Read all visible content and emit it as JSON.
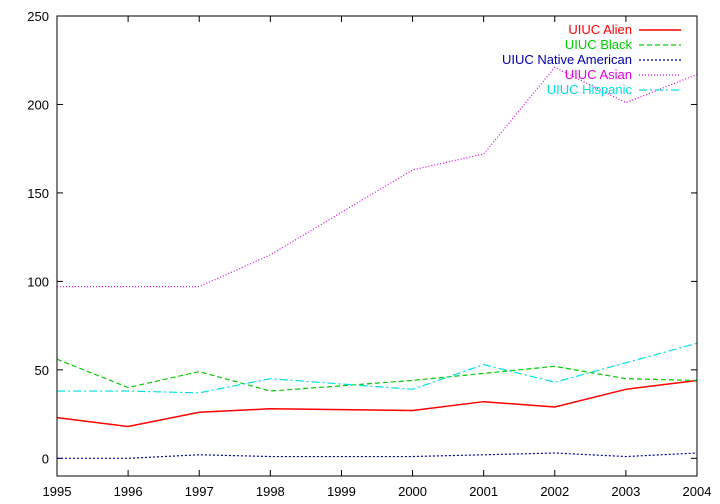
{
  "chart_data": {
    "type": "line",
    "title": "",
    "xlabel": "",
    "ylabel": "",
    "x": [
      1995,
      1996,
      1997,
      1998,
      1999,
      2000,
      2001,
      2002,
      2003,
      2004
    ],
    "x_tick_labels": [
      "1995",
      "1996",
      "1997",
      "1998",
      "1999",
      "2000",
      "2001",
      "2002",
      "2003",
      "2004"
    ],
    "xlim": [
      1995,
      2004
    ],
    "ylim": [
      -10,
      250
    ],
    "y_ticks": [
      0,
      50,
      100,
      150,
      200,
      250
    ],
    "y_tick_labels": [
      "0",
      "50",
      "100",
      "150",
      "200",
      "250"
    ],
    "grid": false,
    "legend_position": "top-right",
    "series": [
      {
        "name": "UIUC Alien",
        "color": "#ff0000",
        "dash": "solid",
        "values": [
          23,
          18,
          26,
          28,
          27.5,
          27,
          32,
          29,
          39,
          44
        ]
      },
      {
        "name": "UIUC Black",
        "color": "#00cc00",
        "dash": "dashed",
        "values": [
          56,
          40,
          49,
          38,
          41,
          44,
          48,
          52,
          45,
          44
        ]
      },
      {
        "name": "UIUC Native American",
        "color": "#0000b0",
        "dash": "dotted",
        "values": [
          0,
          0,
          2,
          1,
          1,
          1,
          2,
          3,
          1,
          3
        ]
      },
      {
        "name": "UIUC Asian",
        "color": "#e000e0",
        "dash": "fine-dotted",
        "values": [
          97,
          97,
          97,
          115,
          139,
          163,
          172,
          221,
          201,
          217
        ]
      },
      {
        "name": "UIUC Hispanic",
        "color": "#00e0e0",
        "dash": "dash-dot",
        "values": [
          38,
          38,
          37,
          45,
          42,
          39,
          53,
          43,
          54,
          65
        ]
      }
    ]
  }
}
